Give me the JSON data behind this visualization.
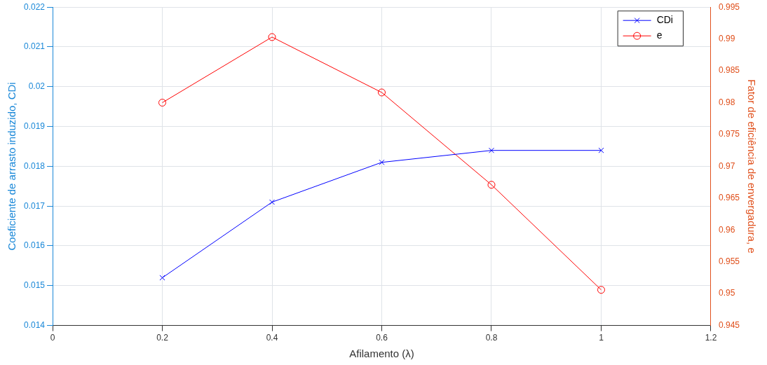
{
  "chart_data": {
    "type": "line",
    "xlabel": "Afilamento (λ)",
    "ylabel": "Coeficiente de arrasto induzido, CDi",
    "y2label": "Fator de eficiência de envergadura, e",
    "x": [
      0.2,
      0.4,
      0.6,
      0.8,
      1
    ],
    "series": [
      {
        "name": "CDi",
        "color": "#0000ff",
        "marker": "cross",
        "values": [
          0.0152,
          0.0171,
          0.0181,
          0.0184,
          0.0184
        ]
      },
      {
        "name": "e",
        "color": "#ff0000",
        "marker": "circle",
        "axis": "y2",
        "values": [
          0.98,
          0.9903,
          0.9816,
          0.9671,
          0.9506
        ]
      }
    ],
    "xlim": [
      0,
      1.2
    ],
    "xticks": [
      0,
      0.2,
      0.4,
      0.6,
      0.8,
      1,
      1.2
    ],
    "ylim": [
      0.014,
      0.022
    ],
    "yticks": [
      0.014,
      0.015,
      0.016,
      0.017,
      0.018,
      0.019,
      0.02,
      0.021,
      0.022
    ],
    "y2lim": [
      0.945,
      0.995
    ],
    "y2ticks": [
      0.945,
      0.95,
      0.955,
      0.96,
      0.965,
      0.97,
      0.975,
      0.98,
      0.985,
      0.99,
      0.995
    ],
    "grid": true,
    "legend": "top right",
    "line_style": "solid"
  }
}
